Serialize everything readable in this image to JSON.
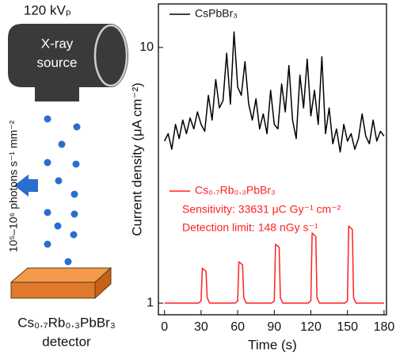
{
  "chart_data": {
    "type": "line",
    "ylog": true,
    "xlabel": "Time (s)",
    "ylabel": "Current density (μA cm⁻²)",
    "xlim": [
      -5,
      182
    ],
    "xticks": [
      0,
      30,
      60,
      90,
      120,
      150,
      180
    ],
    "ylim": [
      0.9,
      14.8
    ],
    "yticks": [
      1,
      10
    ],
    "series": [
      {
        "name": "CsPbBr₃",
        "color": "#000000",
        "x": [
          0,
          3,
          6,
          9,
          12,
          15,
          18,
          21,
          24,
          27,
          30,
          33,
          36,
          39,
          42,
          45,
          48,
          51,
          54,
          57,
          60,
          63,
          66,
          69,
          72,
          75,
          78,
          81,
          84,
          87,
          90,
          93,
          96,
          99,
          102,
          105,
          108,
          111,
          114,
          117,
          120,
          123,
          126,
          129,
          132,
          135,
          138,
          141,
          144,
          147,
          150,
          153,
          156,
          159,
          162,
          165,
          168,
          171,
          174,
          177,
          180
        ],
        "values": [
          4.3,
          4.6,
          4.0,
          5.0,
          4.4,
          5.2,
          4.6,
          5.3,
          4.8,
          5.6,
          5.0,
          4.7,
          6.5,
          5.2,
          7.5,
          5.8,
          6.2,
          9.5,
          6.0,
          11.5,
          7.0,
          6.5,
          8.8,
          6.0,
          5.2,
          6.3,
          4.8,
          5.5,
          4.6,
          6.8,
          5.0,
          4.8,
          7.2,
          5.6,
          8.5,
          5.2,
          4.4,
          7.8,
          5.8,
          9.0,
          5.4,
          6.8,
          5.0,
          9.2,
          4.6,
          5.8,
          4.2,
          4.8,
          3.9,
          5.0,
          4.3,
          4.6,
          4.0,
          4.4,
          5.5,
          4.5,
          4.2,
          5.2,
          4.3,
          4.7,
          4.5
        ]
      },
      {
        "name": "Cs₀.₇Rb₀.₃PbBr₃",
        "color": "#ff2020",
        "x": [
          0,
          28,
          30,
          31,
          34,
          35,
          37,
          58,
          60,
          61,
          64,
          65,
          67,
          88,
          90,
          91,
          94,
          95,
          97,
          118,
          120,
          121,
          124,
          125,
          127,
          148,
          150,
          151,
          154,
          155,
          157,
          180
        ],
        "values": [
          1.0,
          1.0,
          1.02,
          1.37,
          1.33,
          1.05,
          1.0,
          1.0,
          1.02,
          1.45,
          1.41,
          1.05,
          1.0,
          1.0,
          1.02,
          1.7,
          1.65,
          1.05,
          1.0,
          1.0,
          1.02,
          1.88,
          1.82,
          1.05,
          1.0,
          1.0,
          1.02,
          2.0,
          1.94,
          1.05,
          1.0,
          1.0
        ]
      }
    ],
    "annotations": [
      "Sensitivity: 33631 μC Gy⁻¹ cm⁻²",
      "Detection limit: 148 nGy s⁻¹"
    ]
  },
  "diagram": {
    "voltage": "120 kVₚ",
    "source_label": [
      "X-ray",
      "source"
    ],
    "flux": "10⁵–10⁶ photons s⁻¹ mm⁻²",
    "detector_label": [
      "Cs₀.₇Rb₀.₃PbBr₃",
      "detector"
    ]
  }
}
